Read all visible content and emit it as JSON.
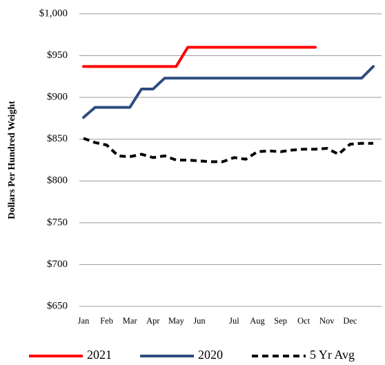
{
  "chart_data": {
    "type": "line",
    "y_label": "Dollars Per Hundred Weight",
    "categories": [
      "Jan",
      null,
      "Feb",
      null,
      "Mar",
      null,
      "Apr",
      null,
      "May",
      null,
      "Jun",
      null,
      null,
      "Jul",
      null,
      "Aug",
      null,
      "Sep",
      null,
      "Oct",
      null,
      "Nov",
      null,
      "Dec",
      null,
      null
    ],
    "series": [
      {
        "name": "2021",
        "color": "#ff0000",
        "style": "solid",
        "values": [
          937,
          937,
          937,
          937,
          937,
          937,
          937,
          937,
          937,
          960,
          960,
          960,
          960,
          960,
          960,
          960,
          960,
          960,
          960,
          960,
          960,
          null,
          null,
          null,
          null,
          null
        ]
      },
      {
        "name": "2020",
        "color": "#2e4d7f",
        "style": "solid",
        "values": [
          876,
          888,
          888,
          888,
          888,
          910,
          910,
          923,
          923,
          923,
          923,
          923,
          923,
          923,
          923,
          923,
          923,
          923,
          923,
          923,
          923,
          923,
          923,
          923,
          923,
          937
        ]
      },
      {
        "name": "5 Yr Avg",
        "color": "#000000",
        "style": "dashed",
        "values": [
          851,
          846,
          843,
          830,
          829,
          832,
          828,
          830,
          825,
          825,
          824,
          823,
          823,
          828,
          826,
          835,
          836,
          835,
          837,
          838,
          838,
          839,
          832,
          844,
          845,
          845
        ]
      }
    ],
    "ylim": [
      650,
      1000
    ],
    "yticks": [
      {
        "value": 650,
        "label": "$650"
      },
      {
        "value": 700,
        "label": "$700"
      },
      {
        "value": 750,
        "label": "$750"
      },
      {
        "value": 800,
        "label": "$800"
      },
      {
        "value": 850,
        "label": "$850"
      },
      {
        "value": 900,
        "label": "$900"
      },
      {
        "value": 950,
        "label": "$950"
      },
      {
        "value": 1000,
        "label": "$1,000"
      }
    ],
    "grid": true,
    "legend": "bottom"
  }
}
